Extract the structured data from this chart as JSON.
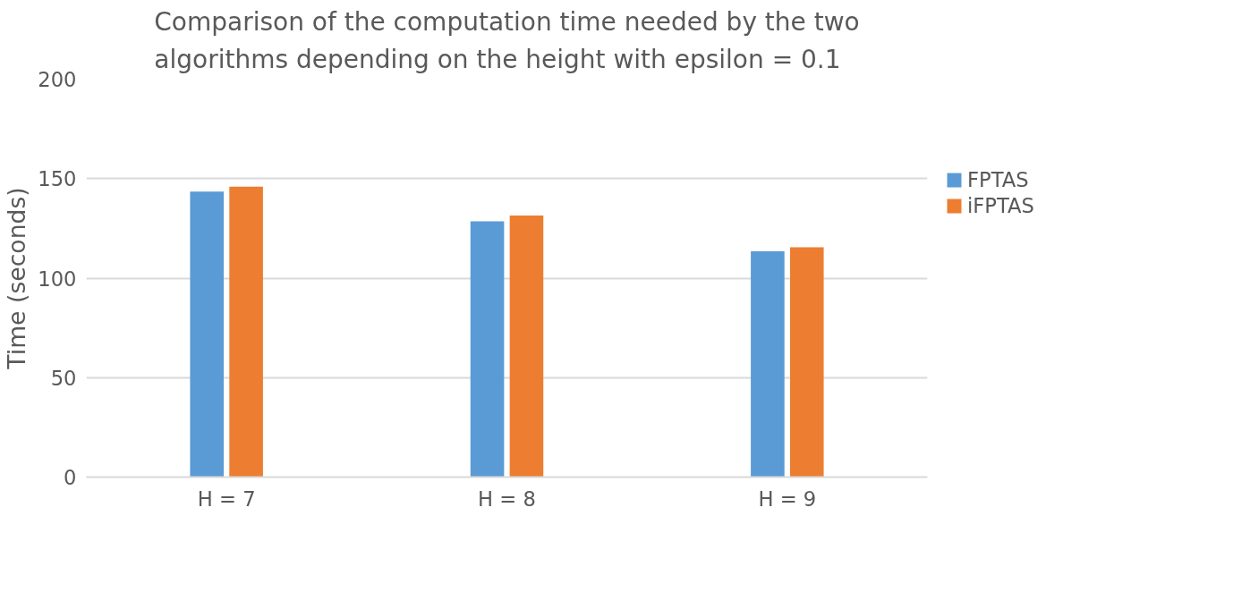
{
  "chart_data": {
    "type": "bar",
    "title": "Comparison of the computation time needed by the two\nalgorithms depending on the height with epsilon = 0.1",
    "ylabel": "Time (seconds)",
    "categories": [
      "H = 7",
      "H = 8",
      "H = 9"
    ],
    "series": [
      {
        "name": "FPTAS",
        "color": "#5b9bd5",
        "values": [
          143.5,
          128.5,
          113.5
        ]
      },
      {
        "name": "iFPTAS",
        "color": "#ed7d31",
        "values": [
          146,
          131.5,
          115.5
        ]
      }
    ],
    "ylim": [
      0,
      200
    ],
    "yticks": [
      0,
      50,
      100,
      150,
      200
    ],
    "grid": "y",
    "legend": "right"
  }
}
